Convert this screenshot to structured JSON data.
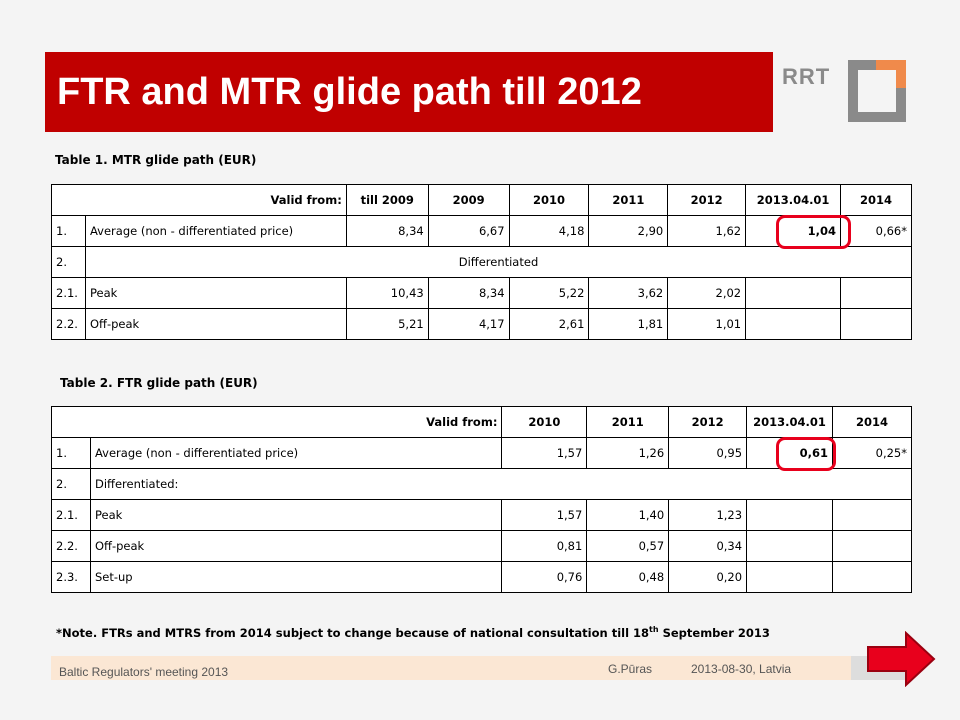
{
  "title": "FTR and MTR glide path till 2012",
  "logo_text": "RRT",
  "table1": {
    "caption": "Table 1. MTR glide path (EUR)",
    "header": {
      "label": "Valid from:",
      "cols": [
        "till 2009",
        "2009",
        "2010",
        "2011",
        "2012",
        "2013.04.01",
        "2014"
      ]
    },
    "row_avg": {
      "no": "1.",
      "label": "Average (non - differentiated price)",
      "values": [
        "8,34",
        "6,67",
        "4,18",
        "2,90",
        "1,62",
        "1,04",
        "0,66*"
      ]
    },
    "row_diff": {
      "no": "2.",
      "label": "Differentiated"
    },
    "row_peak": {
      "no": "2.1.",
      "label": "Peak",
      "values": [
        "10,43",
        "8,34",
        "5,22",
        "3,62",
        "2,02"
      ]
    },
    "row_offpeak": {
      "no": "2.2.",
      "label": "Off-peak",
      "values": [
        "5,21",
        "4,17",
        "2,61",
        "1,81",
        "1,01"
      ]
    }
  },
  "table2": {
    "caption": "Table 2. FTR glide path (EUR)",
    "header": {
      "label": "Valid from:",
      "cols": [
        "2010",
        "2011",
        "2012",
        "2013.04.01",
        "2014"
      ]
    },
    "row_avg": {
      "no": "1.",
      "label": "Average (non - differentiated price)",
      "values": [
        "1,57",
        "1,26",
        "0,95",
        "0,61",
        "0,25*"
      ]
    },
    "row_diff": {
      "no": "2.",
      "label": "Differentiated:"
    },
    "row_peak": {
      "no": "2.1.",
      "label": "Peak",
      "values": [
        "1,57",
        "1,40",
        "1,23"
      ]
    },
    "row_offpeak": {
      "no": "2.2.",
      "label": "Off-peak",
      "values": [
        "0,81",
        "0,57",
        "0,34"
      ]
    },
    "row_setup": {
      "no": "2.3.",
      "label": "Set-up",
      "values": [
        "0,76",
        "0,48",
        "0,20"
      ]
    }
  },
  "note_main": "*Note. FTRs and MTRS from 2014 subject to change because of national consultation till 18",
  "note_sup": "th",
  "note_end": " September 2013",
  "footer": {
    "left": "Baltic Regulators' meeting 2013",
    "author": "G.Pūras",
    "date": "2013-08-30,  Latvia"
  },
  "colors": {
    "title_bg": "#c00000",
    "highlight": "#e8001c",
    "footer_bg": "#fbe7d4",
    "logo_orange": "#f08a4b",
    "logo_gray": "#8a8a8a"
  },
  "icons": {
    "next": "arrow-right-icon",
    "logo": "rrt-logo-icon"
  }
}
